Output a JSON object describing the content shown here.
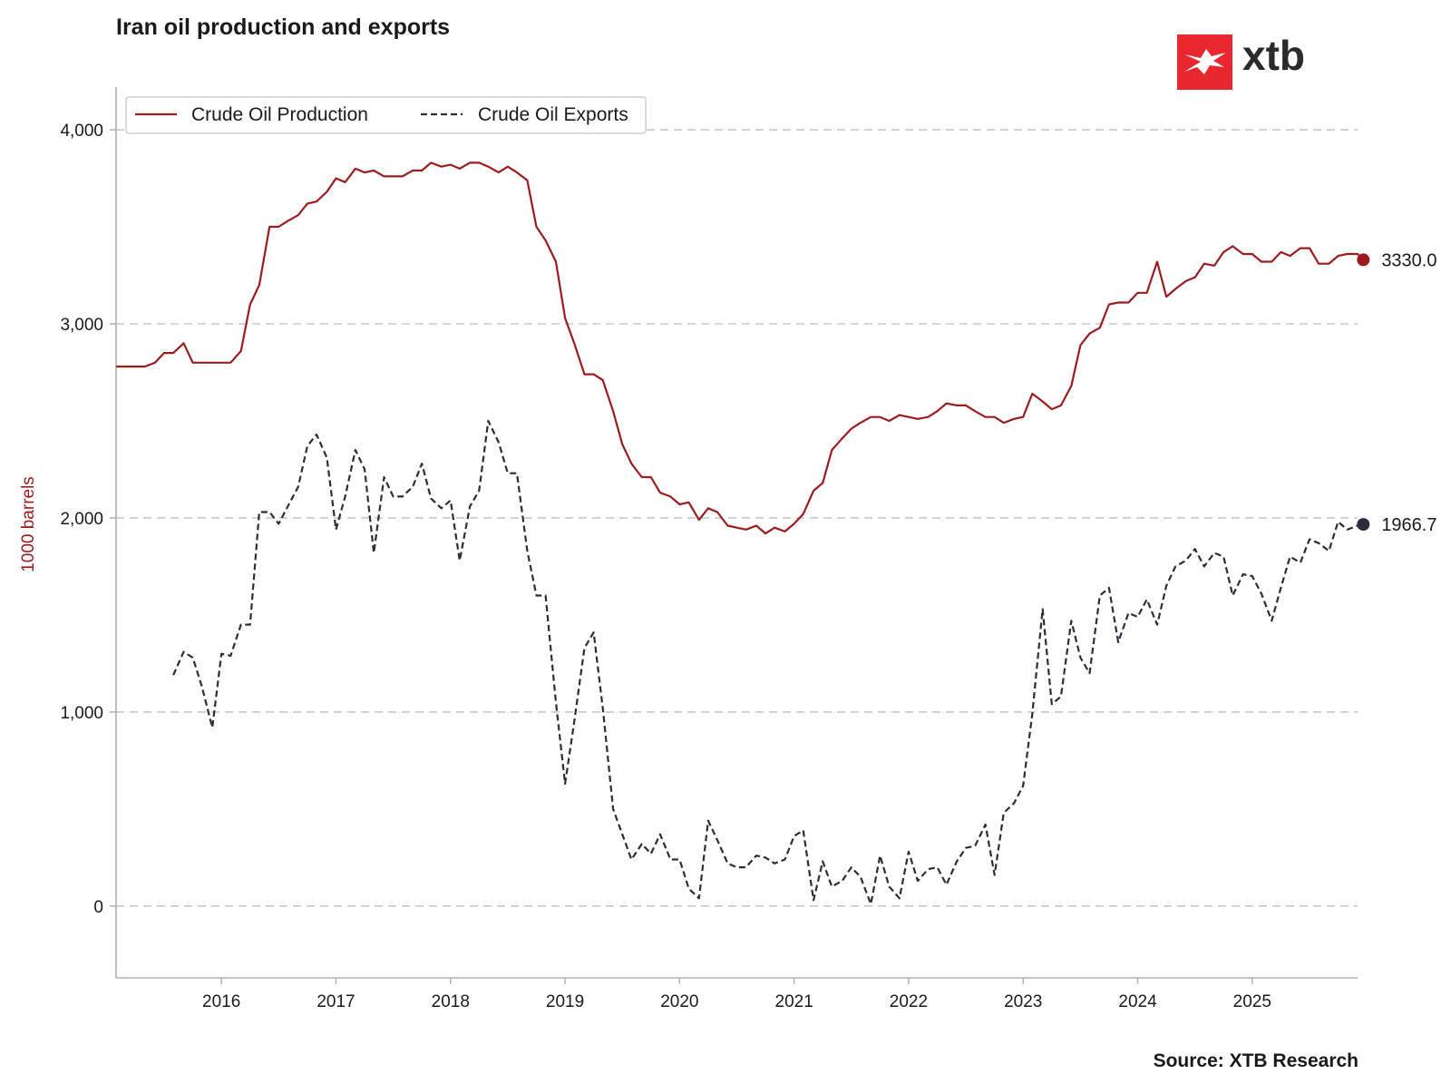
{
  "header": {
    "title": "Iran oil production and exports"
  },
  "logo": {
    "text": "xtb",
    "icon": "xtb-x-logo-icon",
    "color": "#e8282e"
  },
  "footer": {
    "source": "Source: XTB Research"
  },
  "colors": {
    "production": "#9b1c1f",
    "exports": "#2b2d3a",
    "grid": "#c8c8c8",
    "axis": "#b0b0b0",
    "ylabel": "#9b1c1f"
  },
  "chart_data": {
    "type": "line",
    "title": "Iran oil production and exports",
    "xlabel": "",
    "ylabel": "1000 barrels",
    "ylim": [
      -370,
      4220
    ],
    "xlim": [
      2015.08,
      2025.92
    ],
    "yticks": [
      0,
      1000,
      2000,
      3000,
      4000
    ],
    "ytick_labels": [
      "0",
      "1,000",
      "2,000",
      "3,000",
      "4,000"
    ],
    "xticks": [
      2016,
      2017,
      2018,
      2019,
      2020,
      2021,
      2022,
      2023,
      2024,
      2025
    ],
    "xtick_labels": [
      "2016",
      "2017",
      "2018",
      "2019",
      "2020",
      "2021",
      "2022",
      "2023",
      "2024",
      "2025"
    ],
    "grid": "horizontal-dashed",
    "legend": "top-left",
    "series": [
      {
        "name": "Crude Oil Production",
        "style": "solid",
        "end_value": "3330.0",
        "points": [
          [
            2015.08,
            2780
          ],
          [
            2015.25,
            2780
          ],
          [
            2015.33,
            2780
          ],
          [
            2015.42,
            2800
          ],
          [
            2015.5,
            2850
          ],
          [
            2015.58,
            2850
          ],
          [
            2015.67,
            2900
          ],
          [
            2015.75,
            2800
          ],
          [
            2015.83,
            2800
          ],
          [
            2015.92,
            2800
          ],
          [
            2016.0,
            2800
          ],
          [
            2016.08,
            2800
          ],
          [
            2016.17,
            2860
          ],
          [
            2016.25,
            3100
          ],
          [
            2016.33,
            3200
          ],
          [
            2016.42,
            3500
          ],
          [
            2016.5,
            3500
          ],
          [
            2016.58,
            3530
          ],
          [
            2016.67,
            3560
          ],
          [
            2016.75,
            3620
          ],
          [
            2016.83,
            3630
          ],
          [
            2016.92,
            3680
          ],
          [
            2017.0,
            3750
          ],
          [
            2017.08,
            3730
          ],
          [
            2017.17,
            3800
          ],
          [
            2017.25,
            3780
          ],
          [
            2017.33,
            3790
          ],
          [
            2017.42,
            3760
          ],
          [
            2017.5,
            3760
          ],
          [
            2017.58,
            3760
          ],
          [
            2017.67,
            3790
          ],
          [
            2017.75,
            3790
          ],
          [
            2017.83,
            3830
          ],
          [
            2017.92,
            3810
          ],
          [
            2018.0,
            3820
          ],
          [
            2018.08,
            3800
          ],
          [
            2018.17,
            3830
          ],
          [
            2018.25,
            3830
          ],
          [
            2018.33,
            3810
          ],
          [
            2018.42,
            3780
          ],
          [
            2018.5,
            3810
          ],
          [
            2018.58,
            3780
          ],
          [
            2018.67,
            3740
          ],
          [
            2018.75,
            3500
          ],
          [
            2018.83,
            3430
          ],
          [
            2018.92,
            3320
          ],
          [
            2019.0,
            3030
          ],
          [
            2019.08,
            2900
          ],
          [
            2019.17,
            2740
          ],
          [
            2019.25,
            2740
          ],
          [
            2019.33,
            2710
          ],
          [
            2019.42,
            2550
          ],
          [
            2019.5,
            2380
          ],
          [
            2019.58,
            2280
          ],
          [
            2019.67,
            2210
          ],
          [
            2019.75,
            2210
          ],
          [
            2019.83,
            2130
          ],
          [
            2019.92,
            2110
          ],
          [
            2020.0,
            2070
          ],
          [
            2020.08,
            2080
          ],
          [
            2020.17,
            1990
          ],
          [
            2020.25,
            2050
          ],
          [
            2020.33,
            2030
          ],
          [
            2020.42,
            1960
          ],
          [
            2020.5,
            1950
          ],
          [
            2020.58,
            1940
          ],
          [
            2020.67,
            1960
          ],
          [
            2020.75,
            1920
          ],
          [
            2020.83,
            1950
          ],
          [
            2020.92,
            1930
          ],
          [
            2021.0,
            1970
          ],
          [
            2021.08,
            2020
          ],
          [
            2021.17,
            2140
          ],
          [
            2021.25,
            2180
          ],
          [
            2021.33,
            2350
          ],
          [
            2021.42,
            2410
          ],
          [
            2021.5,
            2460
          ],
          [
            2021.58,
            2490
          ],
          [
            2021.67,
            2520
          ],
          [
            2021.75,
            2520
          ],
          [
            2021.83,
            2500
          ],
          [
            2021.92,
            2530
          ],
          [
            2022.0,
            2520
          ],
          [
            2022.08,
            2510
          ],
          [
            2022.17,
            2520
          ],
          [
            2022.25,
            2550
          ],
          [
            2022.33,
            2590
          ],
          [
            2022.42,
            2580
          ],
          [
            2022.5,
            2580
          ],
          [
            2022.58,
            2550
          ],
          [
            2022.67,
            2520
          ],
          [
            2022.75,
            2520
          ],
          [
            2022.83,
            2490
          ],
          [
            2022.92,
            2510
          ],
          [
            2023.0,
            2520
          ],
          [
            2023.08,
            2640
          ],
          [
            2023.17,
            2600
          ],
          [
            2023.25,
            2560
          ],
          [
            2023.33,
            2580
          ],
          [
            2023.42,
            2680
          ],
          [
            2023.5,
            2890
          ],
          [
            2023.58,
            2950
          ],
          [
            2023.67,
            2980
          ],
          [
            2023.75,
            3100
          ],
          [
            2023.83,
            3110
          ],
          [
            2023.92,
            3110
          ],
          [
            2024.0,
            3160
          ],
          [
            2024.08,
            3160
          ],
          [
            2024.17,
            3320
          ],
          [
            2024.25,
            3140
          ],
          [
            2024.33,
            3180
          ],
          [
            2024.42,
            3220
          ],
          [
            2024.5,
            3240
          ],
          [
            2024.58,
            3310
          ],
          [
            2024.67,
            3300
          ],
          [
            2024.75,
            3370
          ],
          [
            2024.83,
            3400
          ],
          [
            2024.92,
            3360
          ],
          [
            2025.0,
            3360
          ],
          [
            2025.08,
            3320
          ],
          [
            2025.17,
            3320
          ],
          [
            2025.25,
            3370
          ],
          [
            2025.33,
            3350
          ],
          [
            2025.42,
            3390
          ],
          [
            2025.5,
            3390
          ],
          [
            2025.58,
            3310
          ],
          [
            2025.67,
            3310
          ],
          [
            2025.75,
            3350
          ],
          [
            2025.83,
            3360
          ],
          [
            2025.92,
            3360
          ],
          [
            2025.97,
            3330
          ]
        ]
      },
      {
        "name": "Crude Oil Exports",
        "style": "dashed",
        "end_value": "1966.7",
        "points": [
          [
            2015.58,
            1190
          ],
          [
            2015.67,
            1310
          ],
          [
            2015.75,
            1280
          ],
          [
            2015.83,
            1130
          ],
          [
            2015.92,
            920
          ],
          [
            2016.0,
            1300
          ],
          [
            2016.08,
            1290
          ],
          [
            2016.17,
            1450
          ],
          [
            2016.25,
            1450
          ],
          [
            2016.33,
            2030
          ],
          [
            2016.42,
            2030
          ],
          [
            2016.5,
            1970
          ],
          [
            2016.58,
            2060
          ],
          [
            2016.67,
            2160
          ],
          [
            2016.75,
            2370
          ],
          [
            2016.83,
            2430
          ],
          [
            2016.92,
            2310
          ],
          [
            2017.0,
            1940
          ],
          [
            2017.08,
            2110
          ],
          [
            2017.17,
            2350
          ],
          [
            2017.25,
            2250
          ],
          [
            2017.33,
            1820
          ],
          [
            2017.42,
            2210
          ],
          [
            2017.5,
            2110
          ],
          [
            2017.58,
            2110
          ],
          [
            2017.67,
            2160
          ],
          [
            2017.75,
            2280
          ],
          [
            2017.83,
            2100
          ],
          [
            2017.92,
            2050
          ],
          [
            2018.0,
            2090
          ],
          [
            2018.08,
            1780
          ],
          [
            2018.17,
            2060
          ],
          [
            2018.25,
            2140
          ],
          [
            2018.33,
            2500
          ],
          [
            2018.42,
            2390
          ],
          [
            2018.5,
            2230
          ],
          [
            2018.58,
            2230
          ],
          [
            2018.67,
            1830
          ],
          [
            2018.75,
            1600
          ],
          [
            2018.83,
            1600
          ],
          [
            2018.92,
            1050
          ],
          [
            2019.0,
            630
          ],
          [
            2019.08,
            950
          ],
          [
            2019.17,
            1330
          ],
          [
            2019.25,
            1410
          ],
          [
            2019.33,
            1020
          ],
          [
            2019.42,
            500
          ],
          [
            2019.5,
            370
          ],
          [
            2019.58,
            240
          ],
          [
            2019.67,
            320
          ],
          [
            2019.75,
            270
          ],
          [
            2019.83,
            370
          ],
          [
            2019.92,
            240
          ],
          [
            2020.0,
            240
          ],
          [
            2020.08,
            90
          ],
          [
            2020.17,
            40
          ],
          [
            2020.25,
            440
          ],
          [
            2020.33,
            340
          ],
          [
            2020.42,
            220
          ],
          [
            2020.5,
            200
          ],
          [
            2020.58,
            200
          ],
          [
            2020.67,
            260
          ],
          [
            2020.75,
            250
          ],
          [
            2020.83,
            220
          ],
          [
            2020.92,
            240
          ],
          [
            2021.0,
            360
          ],
          [
            2021.08,
            390
          ],
          [
            2021.17,
            30
          ],
          [
            2021.25,
            230
          ],
          [
            2021.33,
            100
          ],
          [
            2021.42,
            130
          ],
          [
            2021.5,
            200
          ],
          [
            2021.58,
            150
          ],
          [
            2021.67,
            10
          ],
          [
            2021.75,
            260
          ],
          [
            2021.83,
            100
          ],
          [
            2021.92,
            40
          ],
          [
            2022.0,
            280
          ],
          [
            2022.08,
            130
          ],
          [
            2022.17,
            190
          ],
          [
            2022.25,
            200
          ],
          [
            2022.33,
            110
          ],
          [
            2022.42,
            230
          ],
          [
            2022.5,
            300
          ],
          [
            2022.58,
            310
          ],
          [
            2022.67,
            420
          ],
          [
            2022.75,
            160
          ],
          [
            2022.83,
            480
          ],
          [
            2022.92,
            530
          ],
          [
            2023.0,
            620
          ],
          [
            2023.08,
            990
          ],
          [
            2023.17,
            1530
          ],
          [
            2023.25,
            1040
          ],
          [
            2023.33,
            1080
          ],
          [
            2023.42,
            1470
          ],
          [
            2023.5,
            1280
          ],
          [
            2023.58,
            1200
          ],
          [
            2023.67,
            1600
          ],
          [
            2023.75,
            1640
          ],
          [
            2023.83,
            1360
          ],
          [
            2023.92,
            1510
          ],
          [
            2024.0,
            1490
          ],
          [
            2024.08,
            1580
          ],
          [
            2024.17,
            1450
          ],
          [
            2024.25,
            1650
          ],
          [
            2024.33,
            1750
          ],
          [
            2024.42,
            1780
          ],
          [
            2024.5,
            1840
          ],
          [
            2024.58,
            1750
          ],
          [
            2024.67,
            1820
          ],
          [
            2024.75,
            1800
          ],
          [
            2024.83,
            1600
          ],
          [
            2024.92,
            1710
          ],
          [
            2025.0,
            1700
          ],
          [
            2025.08,
            1610
          ],
          [
            2025.17,
            1470
          ],
          [
            2025.25,
            1640
          ],
          [
            2025.33,
            1800
          ],
          [
            2025.42,
            1770
          ],
          [
            2025.5,
            1890
          ],
          [
            2025.58,
            1870
          ],
          [
            2025.67,
            1830
          ],
          [
            2025.75,
            1980
          ],
          [
            2025.83,
            1940
          ],
          [
            2025.92,
            1960
          ],
          [
            2025.97,
            1966.7
          ]
        ]
      }
    ]
  }
}
